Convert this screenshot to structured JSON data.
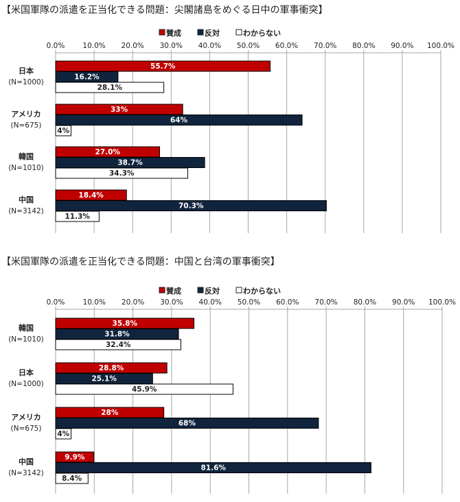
{
  "colors": {
    "賛成": "#c00000",
    "反対": "#10243e",
    "わからない": "#ffffff"
  },
  "chart_data": [
    {
      "type": "bar",
      "orientation": "horizontal",
      "title": "【米国軍隊の派遣を正当化できる問題：尖閣諸島をめぐる日中の軍事衝突】",
      "xlim": [
        0,
        100
      ],
      "ticks": [
        "0.0%",
        "10.0%",
        "20.0%",
        "30.0%",
        "40.0%",
        "50.0%",
        "60.0%",
        "70.0%",
        "80.0%",
        "90.0%",
        "100.0%"
      ],
      "grid": true,
      "legend": "top",
      "categories": [
        {
          "name": "日本",
          "n": "(N=1000)"
        },
        {
          "name": "アメリカ",
          "n": "(N=675)"
        },
        {
          "name": "韓国",
          "n": "(N=1010)"
        },
        {
          "name": "中国",
          "n": "(N=3142)"
        }
      ],
      "series": [
        {
          "name": "賛成",
          "values": [
            55.7,
            33,
            27.0,
            18.4
          ],
          "labels": [
            "55.7%",
            "33%",
            "27.0%",
            "18.4%"
          ]
        },
        {
          "name": "反対",
          "values": [
            16.2,
            64,
            38.7,
            70.3
          ],
          "labels": [
            "16.2%",
            "64%",
            "38.7%",
            "70.3%"
          ]
        },
        {
          "name": "わからない",
          "values": [
            28.1,
            4,
            34.3,
            11.3
          ],
          "labels": [
            "28.1%",
            "4%",
            "34.3%",
            "11.3%"
          ]
        }
      ]
    },
    {
      "type": "bar",
      "orientation": "horizontal",
      "title": "【米国軍隊の派遣を正当化できる問題：中国と台湾の軍事衝突】",
      "xlim": [
        0,
        100
      ],
      "ticks": [
        "0.0%",
        "10.0%",
        "20.0%",
        "30.0%",
        "40.0%",
        "50.0%",
        "60.0%",
        "70.0%",
        "80.0%",
        "90.0%",
        "100.0%"
      ],
      "grid": true,
      "legend": "top",
      "categories": [
        {
          "name": "韓国",
          "n": "(N=1010)"
        },
        {
          "name": "日本",
          "n": "(N=1000)"
        },
        {
          "name": "アメリカ",
          "n": "(N=675)"
        },
        {
          "name": "中国",
          "n": "(N=3142)"
        }
      ],
      "series": [
        {
          "name": "賛成",
          "values": [
            35.8,
            28.8,
            28,
            9.9
          ],
          "labels": [
            "35.8%",
            "28.8%",
            "28%",
            "9.9%"
          ]
        },
        {
          "name": "反対",
          "values": [
            31.8,
            25.1,
            68,
            81.6
          ],
          "labels": [
            "31.8%",
            "25.1%",
            "68%",
            "81.6%"
          ]
        },
        {
          "name": "わからない",
          "values": [
            32.4,
            45.9,
            4,
            8.4
          ],
          "labels": [
            "32.4%",
            "45.9%",
            "4%",
            "8.4%"
          ]
        }
      ]
    }
  ]
}
